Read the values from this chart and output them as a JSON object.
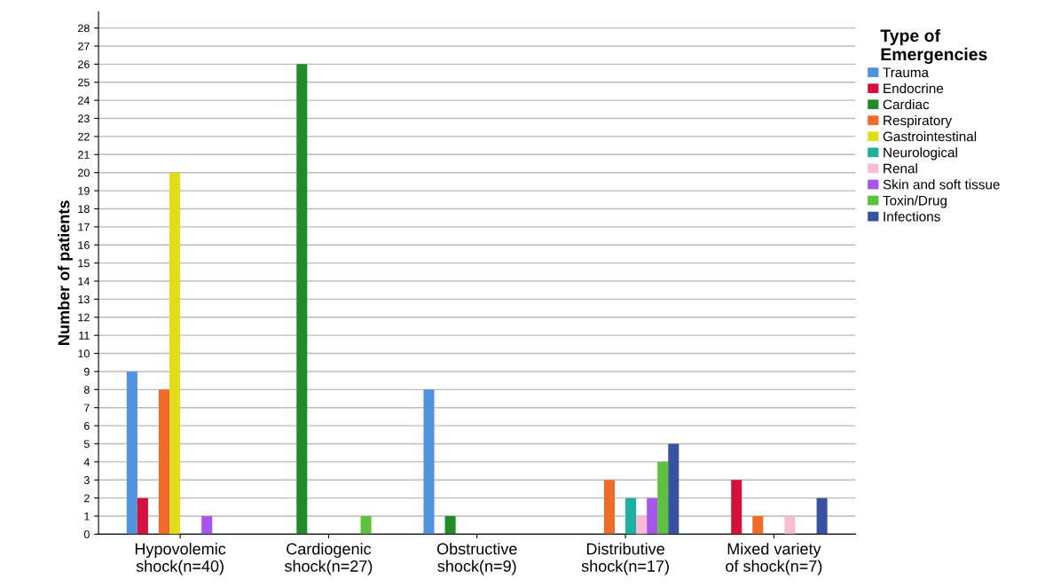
{
  "chart_data": {
    "type": "bar",
    "ylabel": "Number of patients",
    "legend_title": "Type of\nEmergencies",
    "categories": [
      "Hypovolemic\nshock(n=40)",
      "Cardiogenic\nshock(n=27)",
      "Obstructive\nshock(n=9)",
      "Distributive\nshock(n=17)",
      "Mixed variety\nof shock(n=7)"
    ],
    "series": [
      {
        "name": "Trauma",
        "color": "#4f93e0",
        "values": [
          9,
          0,
          8,
          0,
          0
        ]
      },
      {
        "name": "Endocrine",
        "color": "#d4103c",
        "values": [
          2,
          0,
          0,
          0,
          3
        ]
      },
      {
        "name": "Cardiac",
        "color": "#238a2a",
        "values": [
          0,
          26,
          1,
          0,
          0
        ]
      },
      {
        "name": "Respiratory",
        "color": "#f06a2a",
        "values": [
          8,
          0,
          0,
          3,
          1
        ]
      },
      {
        "name": "Gastrointestinal",
        "color": "#e2dc1a",
        "values": [
          20,
          0,
          0,
          0,
          0
        ]
      },
      {
        "name": "Neurological",
        "color": "#1cb0a0",
        "values": [
          0,
          0,
          0,
          2,
          0
        ]
      },
      {
        "name": "Renal",
        "color": "#f8bcd4",
        "values": [
          0,
          0,
          0,
          1,
          1
        ]
      },
      {
        "name": "Skin and soft tissue",
        "color": "#a855f0",
        "values": [
          1,
          0,
          0,
          2,
          0
        ]
      },
      {
        "name": "Toxin/Drug",
        "color": "#5cc23c",
        "values": [
          0,
          1,
          0,
          4,
          0
        ]
      },
      {
        "name": "Infections",
        "color": "#3652a0",
        "values": [
          0,
          0,
          0,
          5,
          2
        ]
      }
    ],
    "ylim": [
      0,
      28.9
    ],
    "yticks": [
      0,
      1,
      2,
      3,
      4,
      5,
      6,
      7,
      8,
      9,
      10,
      11,
      12,
      13,
      14,
      15,
      16,
      17,
      18,
      19,
      20,
      21,
      22,
      23,
      24,
      25,
      26,
      27,
      28
    ],
    "grid": "y",
    "legend": "right"
  }
}
